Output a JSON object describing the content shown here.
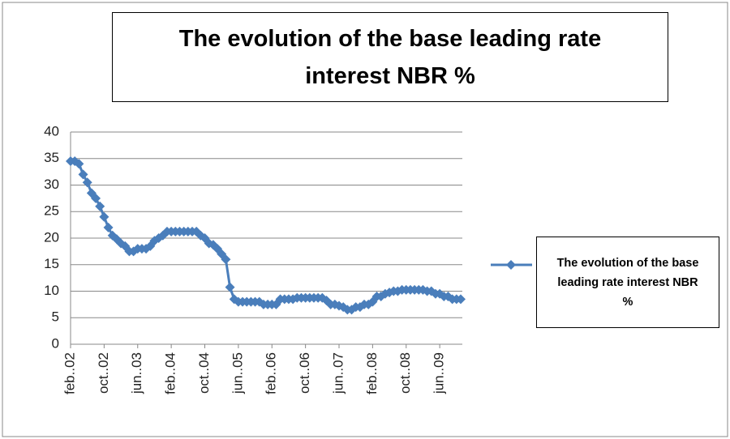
{
  "chart_data": {
    "type": "line",
    "title": "The evolution of the base leading rate interest NBR %",
    "categories": [
      "feb..02",
      null,
      null,
      null,
      null,
      null,
      null,
      null,
      "oct..02",
      null,
      null,
      null,
      null,
      null,
      null,
      null,
      "jun..03",
      null,
      null,
      null,
      null,
      null,
      null,
      null,
      "feb..04",
      null,
      null,
      null,
      null,
      null,
      null,
      null,
      "oct..04",
      null,
      null,
      null,
      null,
      null,
      null,
      null,
      "jun..05",
      null,
      null,
      null,
      null,
      null,
      null,
      null,
      "feb..06",
      null,
      null,
      null,
      null,
      null,
      null,
      null,
      "oct..06",
      null,
      null,
      null,
      null,
      null,
      null,
      null,
      "jun..07",
      null,
      null,
      null,
      null,
      null,
      null,
      null,
      "feb..08",
      null,
      null,
      null,
      null,
      null,
      null,
      null,
      "oct..08",
      null,
      null,
      null,
      null,
      null,
      null,
      null,
      "jun..09",
      null,
      null,
      null,
      null,
      null
    ],
    "series": [
      {
        "name": "The evolution of the base leading rate interest NBR %",
        "color": "#4a7ebb",
        "values": [
          34.5,
          34.5,
          34,
          32,
          30.5,
          28.5,
          27.5,
          26,
          24,
          22,
          20.5,
          19.8,
          19,
          18.5,
          17.5,
          17.5,
          18,
          18,
          18,
          18.5,
          19.5,
          20,
          20.5,
          21.25,
          21.25,
          21.25,
          21.25,
          21.25,
          21.25,
          21.25,
          21.25,
          20.5,
          20,
          19,
          18.75,
          18,
          17,
          16,
          10.75,
          8.5,
          8,
          8,
          8,
          8,
          8,
          8,
          7.5,
          7.5,
          7.5,
          7.5,
          8.5,
          8.5,
          8.5,
          8.5,
          8.75,
          8.75,
          8.75,
          8.75,
          8.75,
          8.75,
          8.75,
          8.25,
          7.5,
          7.5,
          7.25,
          7,
          6.5,
          6.5,
          7,
          7,
          7.5,
          7.5,
          8,
          9,
          9,
          9.5,
          9.75,
          10,
          10,
          10.25,
          10.25,
          10.25,
          10.25,
          10.25,
          10.25,
          10,
          10,
          9.5,
          9.5,
          9,
          9,
          8.5,
          8.5,
          8.5
        ]
      }
    ],
    "ylim": [
      0,
      40
    ],
    "yticks": [
      0,
      5,
      10,
      15,
      20,
      25,
      30,
      35,
      40
    ],
    "grid": true,
    "legend": "right"
  }
}
